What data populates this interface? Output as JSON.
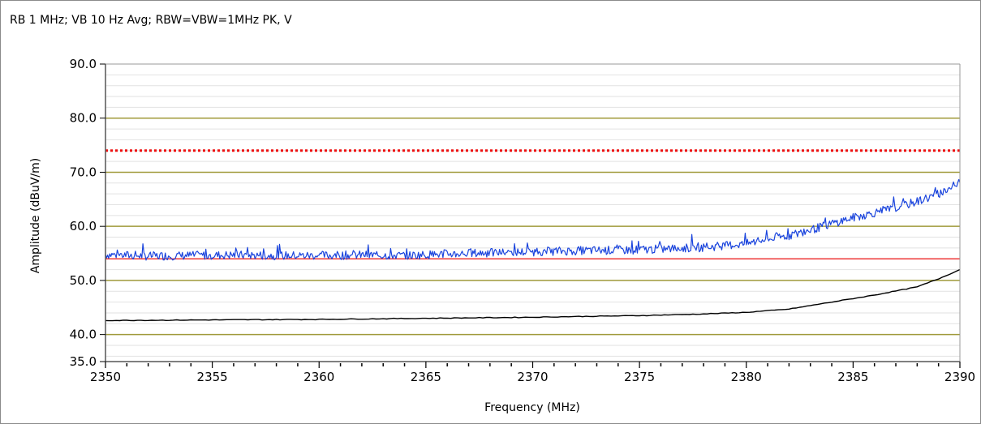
{
  "chart_data": {
    "type": "line",
    "title": "RB 1 MHz; VB 10 Hz Avg; RBW=VBW=1MHz PK, V",
    "xlabel": "Frequency (MHz)",
    "ylabel": "Amplitude (dBuV/m)",
    "xlim": [
      2350,
      2390
    ],
    "ylim": [
      35,
      90
    ],
    "x_ticks": [
      2350,
      2355,
      2360,
      2365,
      2370,
      2375,
      2380,
      2385,
      2390
    ],
    "y_ticks": [
      35,
      40,
      50,
      60,
      70,
      80,
      90
    ],
    "y_tick_labels": [
      "35.0",
      "40.0",
      "50.0",
      "60.0",
      "70.0",
      "80.0",
      "90.0"
    ],
    "x_tick_labels": [
      "2350",
      "2355",
      "2360",
      "2365",
      "2370",
      "2375",
      "2380",
      "2385",
      "2390"
    ],
    "grid": true,
    "grid_major_color": "#a09a3a",
    "grid_minor_color": "#e2e2e2",
    "series": [
      {
        "style": "peak",
        "color": "#1a44dd",
        "x": [
          2350,
          2352,
          2354,
          2356,
          2358,
          2360,
          2362,
          2364,
          2366,
          2368,
          2370,
          2372,
          2374,
          2376,
          2378,
          2380,
          2381,
          2382,
          2383,
          2384,
          2385,
          2386,
          2387,
          2388,
          2389,
          2390
        ],
        "y": [
          54.8,
          54.5,
          54.6,
          54.7,
          54.6,
          54.6,
          54.7,
          54.6,
          54.9,
          55.1,
          55.3,
          55.5,
          55.6,
          55.8,
          56.1,
          56.8,
          57.6,
          58.3,
          59.3,
          60.5,
          61.6,
          62.5,
          63.4,
          64.6,
          66.0,
          68.0
        ]
      },
      {
        "style": "average",
        "color": "#000000",
        "x": [
          2350,
          2355,
          2360,
          2365,
          2370,
          2375,
          2378,
          2380,
          2382,
          2384,
          2386,
          2388,
          2389,
          2390
        ],
        "y": [
          42.6,
          42.7,
          42.8,
          43.0,
          43.2,
          43.5,
          43.8,
          44.1,
          44.7,
          46.0,
          47.3,
          48.8,
          50.3,
          52.0
        ]
      }
    ],
    "limit_lines": [
      {
        "value": 74,
        "color": "#ee1111",
        "style": "dotted"
      },
      {
        "value": 54,
        "color": "#ee1111",
        "style": "solid"
      }
    ]
  }
}
